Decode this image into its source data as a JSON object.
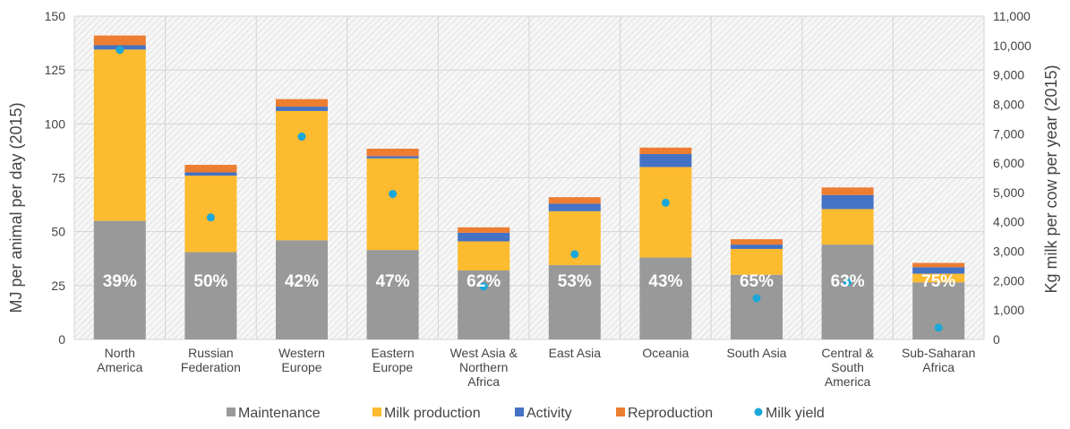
{
  "chart_data": {
    "type": "bar",
    "stacked": true,
    "title": "",
    "ylabel": "MJ per animal per day (2015)",
    "y2label": "Kg milk per cow per year (2015)",
    "ylim": [
      0,
      150
    ],
    "y2lim": [
      0,
      11000
    ],
    "yticks": [
      "0",
      "25",
      "50",
      "75",
      "100",
      "125",
      "150"
    ],
    "y2ticks": [
      "0",
      "1,000",
      "2,000",
      "3,000",
      "4,000",
      "5,000",
      "6,000",
      "7,000",
      "8,000",
      "9,000",
      "10,000",
      "11,000"
    ],
    "grid": true,
    "legend_position": "bottom",
    "categories": [
      [
        "North",
        "America"
      ],
      [
        "Russian",
        "Federation"
      ],
      [
        "Western",
        "Europe"
      ],
      [
        "Eastern",
        "Europe"
      ],
      [
        "West Asia &",
        "Northern",
        "Africa"
      ],
      [
        "East Asia"
      ],
      [
        "Oceania"
      ],
      [
        "South Asia"
      ],
      [
        "Central &",
        "South",
        "America"
      ],
      [
        "Sub-Saharan",
        "Africa"
      ]
    ],
    "series": [
      {
        "name": "Maintenance",
        "color": "#999999",
        "values": [
          55,
          40.5,
          46,
          41.5,
          32,
          34.5,
          38,
          30,
          44,
          26.5
        ]
      },
      {
        "name": "Milk production",
        "color": "#FDBB2F",
        "values": [
          79.5,
          35.5,
          60,
          42.5,
          13.5,
          25,
          42,
          12,
          16.5,
          4
        ]
      },
      {
        "name": "Activity",
        "color": "#4472C4",
        "values": [
          2,
          1.5,
          2,
          1,
          4,
          3.5,
          6,
          2,
          6.5,
          3
        ]
      },
      {
        "name": "Reproduction",
        "color": "#ED7D31",
        "values": [
          4.5,
          3.5,
          3.5,
          3.5,
          2.5,
          3,
          3,
          2.5,
          3.5,
          2
        ]
      }
    ],
    "percent_labels": [
      "39%",
      "50%",
      "42%",
      "47%",
      "62%",
      "53%",
      "43%",
      "65%",
      "63%",
      "75%"
    ],
    "milk_yield": {
      "name": "Milk yield",
      "color": "#1BA7D8",
      "axis": "right",
      "values": [
        9850,
        4150,
        6900,
        4950,
        1800,
        2900,
        4650,
        1400,
        1950,
        400
      ]
    }
  }
}
